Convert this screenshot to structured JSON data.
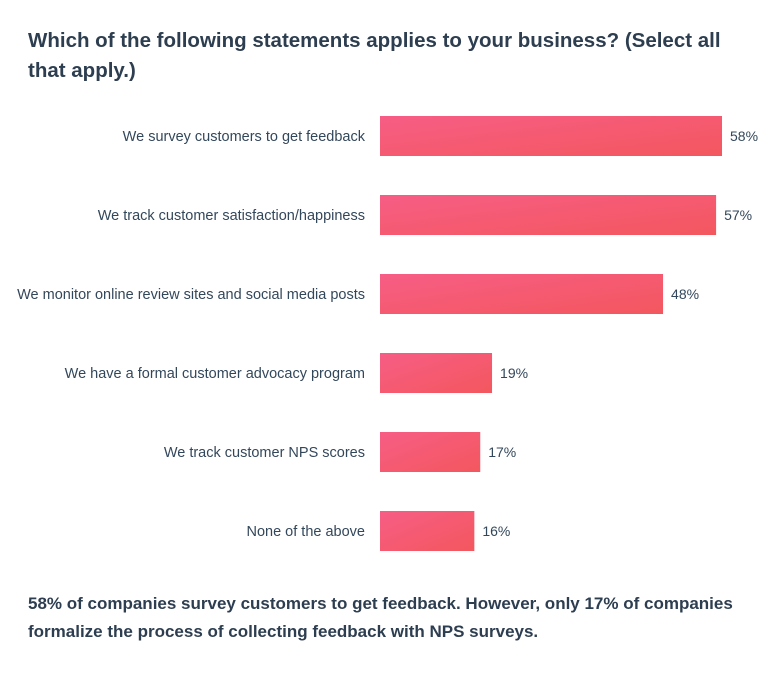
{
  "title": "Which of the following statements applies to your business? (Select all that apply.)",
  "caption": "58% of companies survey customers to get feedback. However, only 17% of companies formalize the process of collecting feedback with NPS surveys.",
  "colors": {
    "bar_start": "#f75d85",
    "bar_end": "#f3575e"
  },
  "chart_data": {
    "type": "bar",
    "orientation": "horizontal",
    "title": "Which of the following statements applies to your business? (Select all that apply.)",
    "categories": [
      "We survey customers to get feedback",
      "We track customer satisfaction/happiness",
      "We monitor online review sites and social media posts",
      "We have a formal customer advocacy program",
      "We track customer NPS scores",
      "None of the above"
    ],
    "values": [
      58,
      57,
      48,
      19,
      17,
      16
    ],
    "value_labels": [
      "58%",
      "57%",
      "48%",
      "19%",
      "17%",
      "16%"
    ],
    "xlim": [
      0,
      58
    ],
    "grid": false,
    "legend": "none"
  }
}
